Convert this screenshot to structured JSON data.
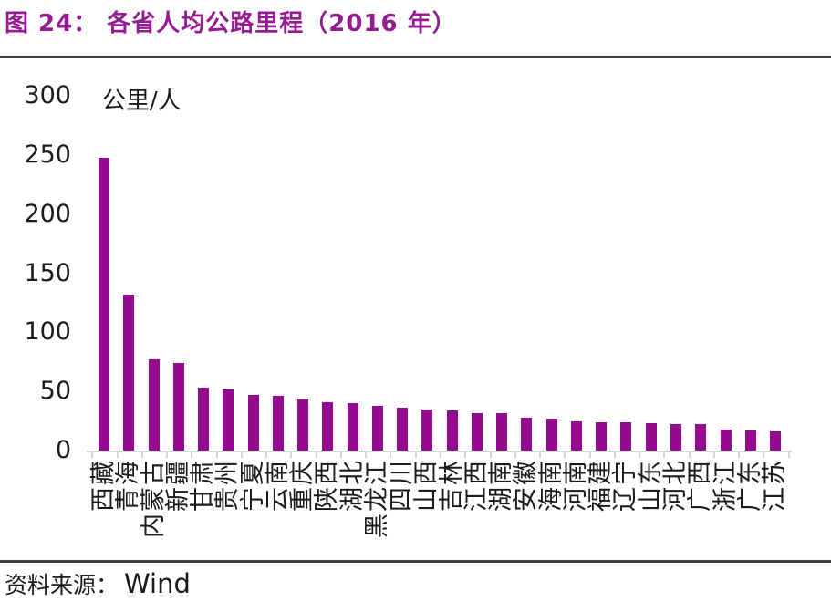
{
  "title": "图 24： 各省人均公路里程（2016 年）",
  "footer": {
    "source_label": "资料来源：",
    "source_name": "Wind"
  },
  "colors": {
    "title_purple": "#941B92",
    "bar_fill": "#940B8F",
    "rule_dark": "#3F3F3F",
    "axis_gray": "#D6D6D6",
    "text_dark": "#1A1A1A"
  },
  "chart_data": {
    "type": "bar",
    "title": "各省人均公路里程（2016 年）",
    "unit_label": "公里/人",
    "categories": [
      "西藏",
      "青海",
      "内蒙古",
      "新疆",
      "甘肃",
      "贵州",
      "宁夏",
      "云南",
      "重庆",
      "陕西",
      "湖北",
      "黑龙江",
      "四川",
      "山西",
      "吉林",
      "江西",
      "湖南",
      "安徽",
      "海南",
      "河南",
      "福建",
      "辽宁",
      "山东",
      "河北",
      "广西",
      "浙江",
      "广东",
      "江苏"
    ],
    "values": [
      248,
      132,
      77,
      74,
      53,
      52,
      47,
      46,
      43,
      41,
      40,
      38,
      36,
      35,
      34,
      32,
      32,
      28,
      27,
      25,
      24,
      24,
      23,
      22,
      22,
      18,
      17,
      16
    ],
    "y_ticks": [
      0,
      50,
      100,
      150,
      200,
      250,
      300
    ],
    "ylim": [
      0,
      300
    ],
    "xlabel": "",
    "ylabel": "公里/人",
    "grid": false,
    "legend": "none",
    "sorted": "descending"
  }
}
